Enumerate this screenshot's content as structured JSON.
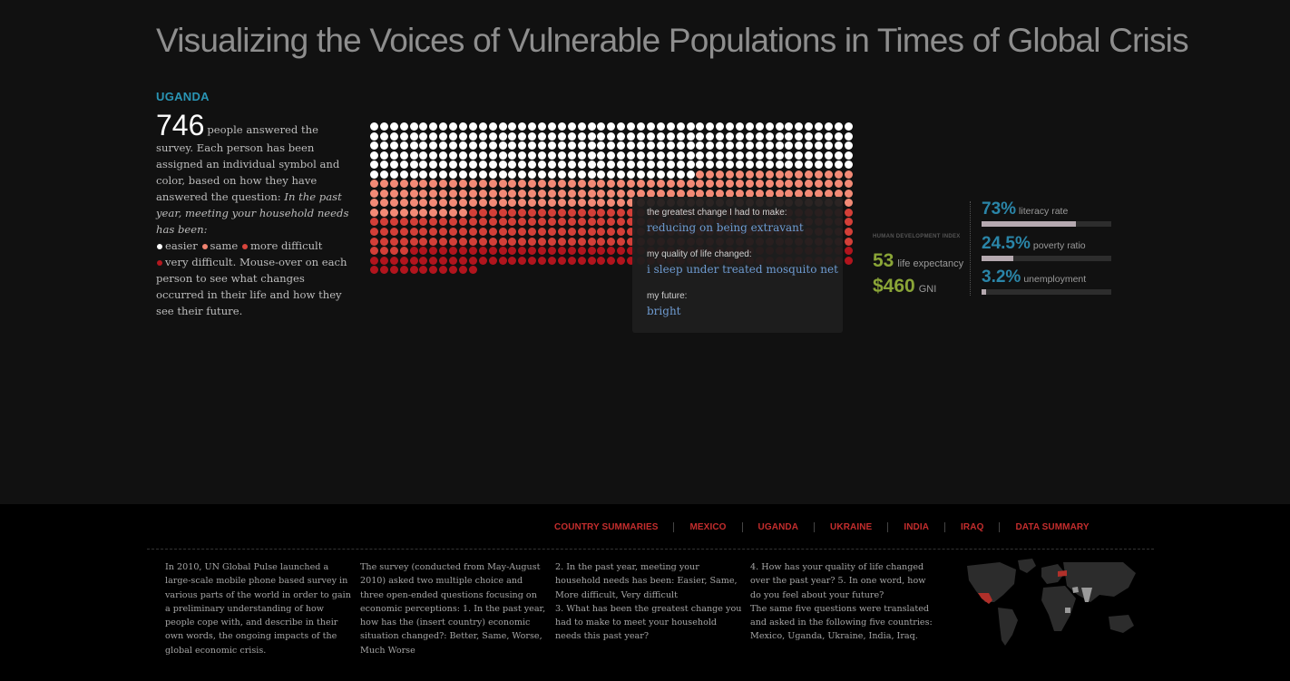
{
  "header": {
    "title": "Visualizing the Voices of Vulnerable Populations in Times of Global Crisis"
  },
  "country": {
    "name": "UGANDA"
  },
  "intro": {
    "count": "746",
    "line1": "people answered the survey.",
    "line2": "Each person has been assigned an individual symbol and color, based on how they have answered the question:",
    "question": "In the past year, meeting your household needs has been:",
    "legend": [
      {
        "label": "easier",
        "color": "#ffffff"
      },
      {
        "label": "same",
        "color": "#f08370"
      },
      {
        "label": "more difficult",
        "color": "#d9453c"
      },
      {
        "label": "very difficult.",
        "color": "#b3181f"
      }
    ],
    "closing": "Mouse-over on each person to see what changes occurred in their life and how they see their future."
  },
  "grid_data": {
    "total": 746,
    "columns": 49,
    "counts": {
      "easier": 278,
      "same": 173,
      "more_difficult": 190,
      "very_difficult": 105
    },
    "colors": {
      "easier": "#ffffff",
      "same": "#f28a76",
      "more_difficult": "#d33f38",
      "very_difficult": "#b2141d"
    }
  },
  "tooltip": {
    "change_label": "the greatest change I had to make:",
    "change_value": "reducing on being extravant",
    "quality_label": "my quality of life changed:",
    "quality_value": "i sleep under treated mosquito net",
    "future_label": "my future:",
    "future_value": "bright"
  },
  "stats": {
    "hdi_label": "HUMAN DEVELOPMENT INDEX",
    "life_expectancy": {
      "value": "53",
      "label": "life expectancy"
    },
    "gni": {
      "value": "$460",
      "label": "GNI"
    },
    "literacy": {
      "value": "73%",
      "label": "literacy rate",
      "fraction": 0.73
    },
    "poverty": {
      "value": "24.5%",
      "label": "poverty ratio",
      "fraction": 0.245
    },
    "unemployment": {
      "value": "3.2%",
      "label": "unemployment",
      "fraction": 0.032
    }
  },
  "nav": {
    "items": [
      "COUNTRY SUMMARIES",
      "MEXICO",
      "UGANDA",
      "UKRAINE",
      "INDIA",
      "IRAQ",
      "DATA SUMMARY"
    ]
  },
  "footer": {
    "col1": "In 2010, UN Global Pulse launched a large-scale mobile phone based survey in various parts of the world in order to gain a preliminary understanding of how people cope with, and describe in their own words, the ongoing impacts of the global economic crisis.",
    "col2": "The survey (conducted from May-August 2010) asked two multiple choice and three open-ended questions focusing on economic perceptions: 1. In the past year, how has the (insert country) economic situation changed?: Better, Same, Worse, Much Worse",
    "col3": "2. In the past year, meeting your household needs has been: Easier, Same, More difficult, Very difficult\n3. What has been the greatest change you had to make to meet your household needs this past year?",
    "col4": "4. How has your quality of life changed over the past year? 5. In one word, how do you feel about your future?\nThe same five questions were translated and asked in the following five countries: Mexico, Uganda, Ukraine, India, Iraq."
  },
  "map": {
    "highlight_color": "#b0302a",
    "land_color": "#2c2c2c",
    "selected_color": "#9a9a9a"
  }
}
